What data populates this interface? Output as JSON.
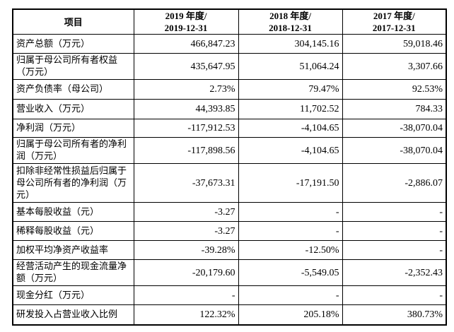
{
  "table": {
    "headers": [
      {
        "line1": "项目",
        "line2": ""
      },
      {
        "line1": "2019 年度/",
        "line2": "2019-12-31"
      },
      {
        "line1": "2018 年度/",
        "line2": "2018-12-31"
      },
      {
        "line1": "2017 年度/",
        "line2": "2017-12-31"
      }
    ],
    "rows": [
      {
        "label": "资产总额（万元）",
        "values": [
          "466,847.23",
          "304,145.16",
          "59,018.46"
        ]
      },
      {
        "label": "归属于母公司所有者权益（万元）",
        "values": [
          "435,647.95",
          "51,064.24",
          "3,307.66"
        ]
      },
      {
        "label": "资产负债率（母公司）",
        "values": [
          "2.73%",
          "79.47%",
          "92.53%"
        ]
      },
      {
        "label": "营业收入（万元）",
        "values": [
          "44,393.85",
          "11,702.52",
          "784.33"
        ]
      },
      {
        "label": "净利润（万元）",
        "values": [
          "-117,912.53",
          "-4,104.65",
          "-38,070.04"
        ]
      },
      {
        "label": "归属于母公司所有者的净利润（万元）",
        "values": [
          "-117,898.56",
          "-4,104.65",
          "-38,070.04"
        ]
      },
      {
        "label": "扣除非经常性损益后归属于母公司所有者的净利润（万元）",
        "values": [
          "-37,673.31",
          "-17,191.50",
          "-2,886.07"
        ]
      },
      {
        "label": "基本每股收益（元）",
        "values": [
          "-3.27",
          "-",
          "-"
        ]
      },
      {
        "label": "稀释每股收益（元）",
        "values": [
          "-3.27",
          "-",
          "-"
        ]
      },
      {
        "label": "加权平均净资产收益率",
        "values": [
          "-39.28%",
          "-12.50%",
          "-"
        ]
      },
      {
        "label": "经营活动产生的现金流量净额（万元）",
        "values": [
          "-20,179.60",
          "-5,549.05",
          "-2,352.43"
        ]
      },
      {
        "label": "现金分红（万元）",
        "values": [
          "-",
          "-",
          "-"
        ]
      },
      {
        "label": "研发投入占营业收入比例",
        "values": [
          "122.32%",
          "205.18%",
          "380.73%"
        ]
      }
    ]
  }
}
